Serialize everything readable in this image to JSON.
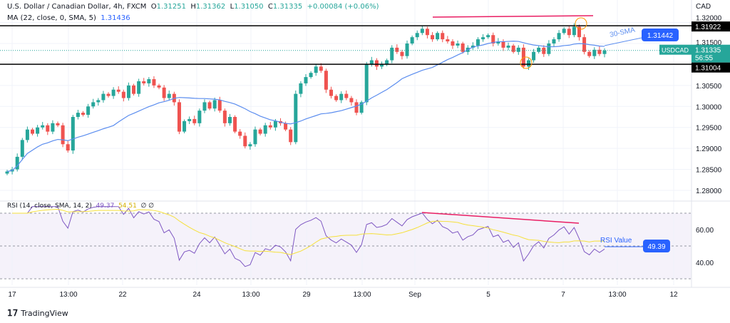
{
  "header": {
    "symbol": "U.S. Dollar / Canadian Dollar, 4h, FXCM",
    "o_label": "O",
    "o": "1.31251",
    "h_label": "H",
    "h": "1.31362",
    "l_label": "L",
    "l": "1.31050",
    "c_label": "C",
    "c": "1.31335",
    "change": "+0.00084 (+0.06%)",
    "ma_label": "MA (22, close, 0, SMA, 5)",
    "ma_value": "1.31436",
    "rsi_label": "RSI (14, close, SMA, 14, 2)",
    "rsi_value": "49.37",
    "rsi_sma_value": "54.51",
    "rsi_extra": "∅ ∅"
  },
  "price_axis": {
    "currency": "CAD",
    "ticks": [
      "1.32000",
      "1.31500",
      "1.30500",
      "1.30000",
      "1.29500",
      "1.29000",
      "1.28500",
      "1.28000"
    ]
  },
  "rsi_axis": {
    "ticks": [
      "60.00",
      "40.00"
    ]
  },
  "time_axis": [
    "17",
    "13:00",
    "22",
    "24",
    "13:00",
    "29",
    "13:00",
    "Sep",
    "5",
    "7",
    "13:00",
    "12"
  ],
  "labels": {
    "resistance": "1.31922",
    "support": "1.31004",
    "sma_value": "1.31442",
    "sma_note": "30-SMA",
    "symbol_tag": "USDCAD",
    "last_price": "1.31335",
    "countdown": "56:55",
    "rsi_note": "RSI Value",
    "rsi_tag": "49.39"
  },
  "colors": {
    "up": "#26a69a",
    "down": "#ef5350",
    "sma": "#5b8def",
    "rsi": "#7e57c2",
    "rsi_sma": "#f5e03a",
    "trend": "#e91e63",
    "circle": "#ff9800",
    "tag": "#2962ff"
  },
  "footer": {
    "brand": "TradingView"
  },
  "chart_data": {
    "type": "candlestick",
    "ylim": [
      1.278,
      1.322
    ],
    "levels": [
      1.31922,
      1.31004
    ],
    "closes": [
      1.2845,
      1.285,
      1.288,
      1.292,
      1.2945,
      1.2935,
      1.295,
      1.2955,
      1.294,
      1.296,
      1.2955,
      1.291,
      1.2895,
      1.2975,
      1.2985,
      1.298,
      1.3,
      1.301,
      1.3015,
      1.303,
      1.3025,
      1.304,
      1.3035,
      1.302,
      1.305,
      1.303,
      1.306,
      1.3055,
      1.3065,
      1.305,
      1.3045,
      1.302,
      1.303,
      1.301,
      1.294,
      1.2965,
      1.297,
      1.296,
      1.299,
      1.301,
      1.2995,
      1.3015,
      1.299,
      1.296,
      1.2975,
      1.294,
      1.293,
      1.2905,
      1.291,
      1.2945,
      1.2935,
      1.2955,
      1.295,
      1.2965,
      1.296,
      1.2945,
      1.2915,
      1.303,
      1.3055,
      1.307,
      1.308,
      1.3095,
      1.3085,
      1.304,
      1.3025,
      1.3015,
      1.303,
      1.302,
      1.301,
      1.2985,
      1.301,
      1.31,
      1.311,
      1.3095,
      1.31,
      1.311,
      1.314,
      1.313,
      1.312,
      1.315,
      1.3165,
      1.3175,
      1.3185,
      1.317,
      1.316,
      1.3175,
      1.316,
      1.3155,
      1.3145,
      1.315,
      1.313,
      1.314,
      1.3145,
      1.316,
      1.3165,
      1.317,
      1.315,
      1.3155,
      1.314,
      1.3145,
      1.313,
      1.314,
      1.3095,
      1.311,
      1.313,
      1.314,
      1.3125,
      1.315,
      1.316,
      1.3175,
      1.3185,
      1.317,
      1.319,
      1.3165,
      1.313,
      1.312,
      1.3135,
      1.3125,
      1.31335
    ],
    "rsi_ylim": [
      25,
      75
    ],
    "rsi_levels": [
      70,
      50,
      30
    ]
  }
}
